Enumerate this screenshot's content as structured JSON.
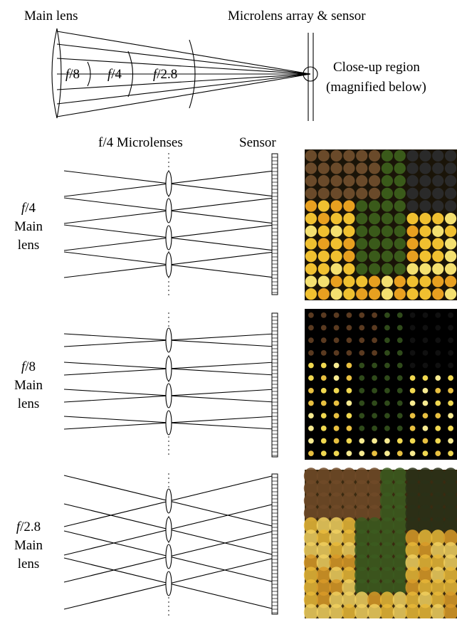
{
  "top": {
    "main_lens_label": "Main lens",
    "array_label": "Microlens array & sensor",
    "closeup_line1": "Close-up region",
    "closeup_line2": "(magnified below)",
    "cone_labels": [
      {
        "f": "f",
        "rest": "/8"
      },
      {
        "f": "f",
        "rest": "/4"
      },
      {
        "f": "f",
        "rest": "/2.8"
      }
    ]
  },
  "headers": {
    "microlenses": "f/4 Microlenses",
    "sensor": "Sensor"
  },
  "rows": [
    {
      "f": "f",
      "rest": "/4",
      "line2": "Main",
      "line3": "lens",
      "photo": {
        "bg": "#1a1408",
        "palette": [
          "#e8a020",
          "#f0c030",
          "#3a5a1a",
          "#2a2a2a",
          "#f4e070",
          "#6a4a2a"
        ]
      }
    },
    {
      "f": "f",
      "rest": "/8",
      "line2": "Main",
      "line3": "lens",
      "photo": {
        "bg": "#000000",
        "palette": [
          "#e8c040",
          "#f0d850",
          "#2f4a1a",
          "#101010",
          "#f6ea90",
          "#5a3a20"
        ]
      }
    },
    {
      "f": "f",
      "rest": "/2.8",
      "line2": "Main",
      "line3": "lens",
      "photo": {
        "bg": "#3a2a10",
        "palette": [
          "#d89a28",
          "#e8b838",
          "#3c5c20",
          "#2a3018",
          "#f0d060",
          "#704a28"
        ]
      }
    }
  ]
}
